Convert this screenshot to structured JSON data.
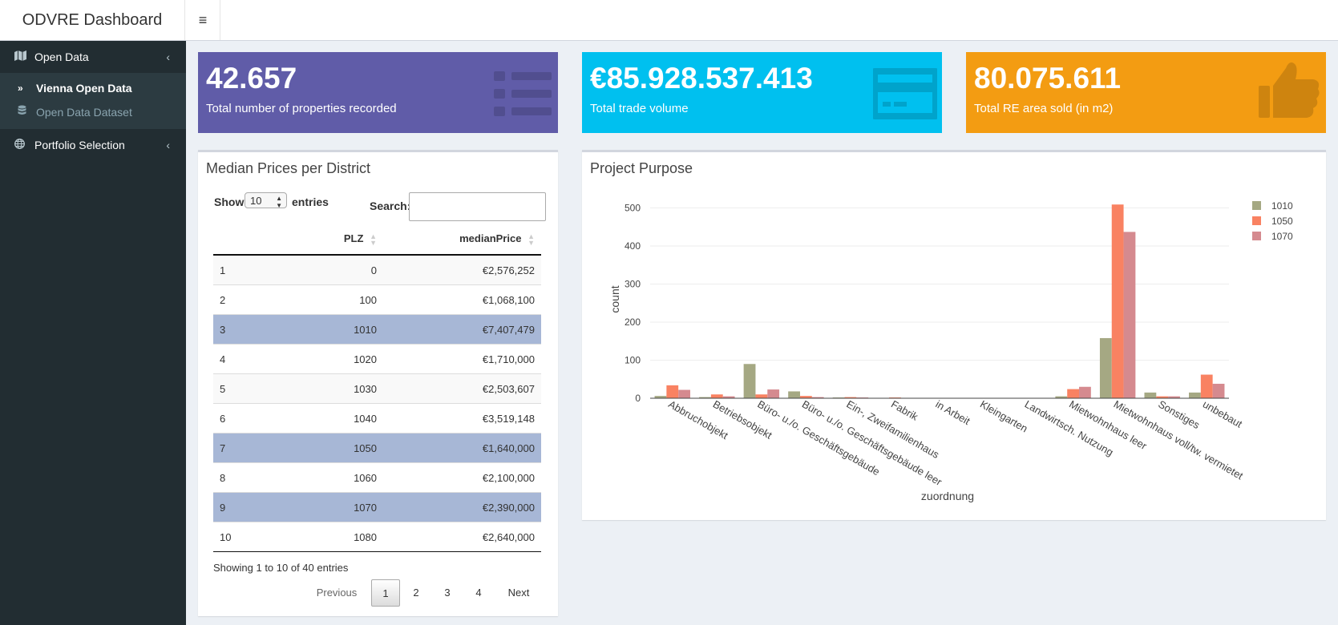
{
  "app": {
    "title": "ODVRE Dashboard",
    "menu_icon": "hamburger-icon"
  },
  "sidebar": {
    "open_data": "Open Data",
    "vienna_open_data": "Vienna Open Data",
    "open_data_dataset": "Open Data Dataset",
    "portfolio_selection": "Portfolio Selection"
  },
  "value_boxes": [
    {
      "value": "42.657",
      "label": "Total number of properties recorded",
      "color": "#605ca8",
      "icon": "list-icon"
    },
    {
      "value": "€85.928.537.413",
      "label": "Total trade volume",
      "color": "#00c0ef",
      "icon": "credit-card-icon"
    },
    {
      "value": "80.075.611",
      "label": "Total RE area sold (in m2)",
      "color": "#f39c12",
      "icon": "thumbs-up-icon"
    }
  ],
  "median_table": {
    "title": "Median Prices per District",
    "show_label": "Show",
    "entries_label": "entries",
    "page_length": "10",
    "search_label": "Search:",
    "search_value": "",
    "columns": [
      "",
      "PLZ",
      "medianPrice"
    ],
    "rows": [
      [
        "1",
        "0",
        "€2,576,252"
      ],
      [
        "2",
        "100",
        "€1,068,100"
      ],
      [
        "3",
        "1010",
        "€7,407,479"
      ],
      [
        "4",
        "1020",
        "€1,710,000"
      ],
      [
        "5",
        "1030",
        "€2,503,607"
      ],
      [
        "6",
        "1040",
        "€3,519,148"
      ],
      [
        "7",
        "1050",
        "€1,640,000"
      ],
      [
        "8",
        "1060",
        "€2,100,000"
      ],
      [
        "9",
        "1070",
        "€2,390,000"
      ],
      [
        "10",
        "1080",
        "€2,640,000"
      ]
    ],
    "selected_rows": [
      "3",
      "7",
      "9"
    ],
    "info": "Showing 1 to 10 of 40 entries",
    "pagination": {
      "previous": "Previous",
      "pages": [
        "1",
        "2",
        "3",
        "4"
      ],
      "current": "1",
      "next": "Next"
    }
  },
  "project_purpose": {
    "title": "Project Purpose"
  },
  "chart_data": {
    "type": "bar",
    "title": "",
    "xlabel": "zuordnung",
    "ylabel": "count",
    "ylim": [
      0,
      520
    ],
    "yticks": [
      0,
      100,
      200,
      300,
      400,
      500
    ],
    "grid": true,
    "legend_position": "top-right",
    "categories": [
      "Abbruchobjekt",
      "Betriebsobjekt",
      "Büro- u./o. Geschäftsgebäude",
      "Büro- u./o. Geschäftsgebäude leer",
      "Ein-, Zweifamilienhaus",
      "Fabrik",
      "in Arbeit",
      "Kleingarten",
      "Landwirtsch. Nutzung",
      "Mietwohnhaus leer",
      "Mietwohnhaus voll/tw. vermietet",
      "Sonstiges",
      "unbebaut"
    ],
    "series": [
      {
        "name": "1010",
        "color": "#a5a883",
        "values": [
          6,
          3,
          90,
          18,
          2,
          1,
          1,
          0,
          0,
          5,
          158,
          15,
          15
        ]
      },
      {
        "name": "1050",
        "color": "#f98262",
        "values": [
          34,
          10,
          10,
          6,
          3,
          2,
          1,
          0,
          0,
          24,
          509,
          5,
          62
        ]
      },
      {
        "name": "1070",
        "color": "#d58a8f",
        "values": [
          22,
          5,
          23,
          3,
          2,
          1,
          0,
          0,
          1,
          30,
          437,
          5,
          38
        ]
      }
    ]
  }
}
